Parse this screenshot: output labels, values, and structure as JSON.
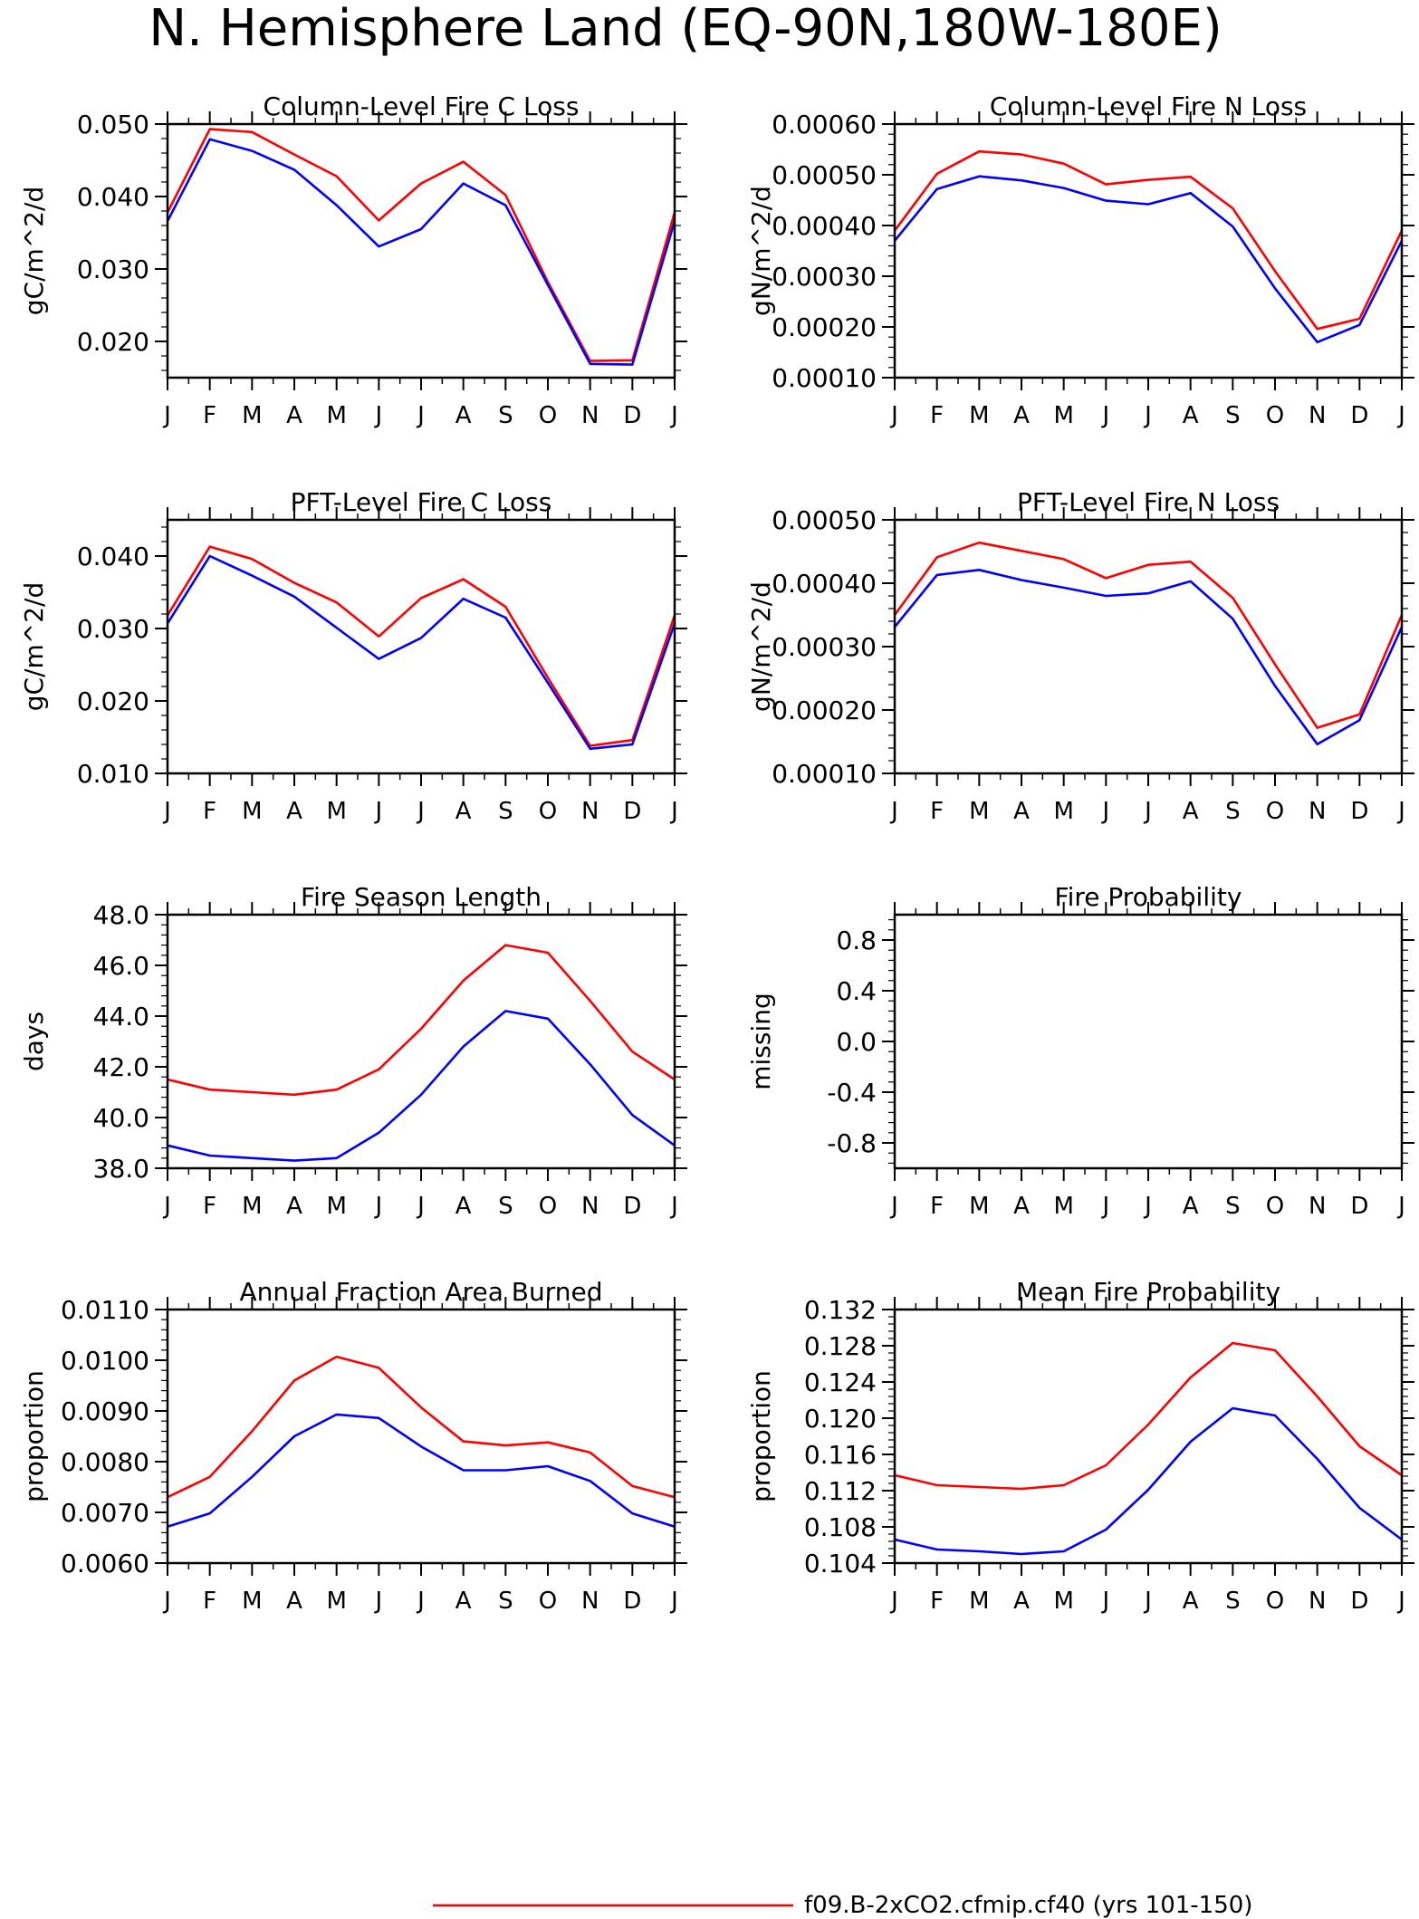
{
  "figure": {
    "title": "N. Hemisphere Land (EQ-90N,180W-180E)",
    "legend": {
      "label": "f09.B-2xCO2.cfmip.cf40 (yrs 101-150)",
      "color": "#ff0000"
    }
  },
  "colors": {
    "red": "#ff0000",
    "blue": "#0000ff",
    "axis": "#000000"
  },
  "chart_data": [
    {
      "type": "line",
      "title": "Column-Level Fire C Loss",
      "ylabel": "gC/m^2/d",
      "categories": [
        "J",
        "F",
        "M",
        "A",
        "M",
        "J",
        "J",
        "A",
        "S",
        "O",
        "N",
        "D",
        "J"
      ],
      "ylim": [
        0.015,
        0.05
      ],
      "yticks": [
        "0.020",
        "0.030",
        "0.040",
        "0.050"
      ],
      "series": [
        {
          "color": "#ff0000",
          "values": [
            0.0378,
            0.0493,
            0.0489,
            0.0458,
            0.0428,
            0.0367,
            0.0418,
            0.0448,
            0.0402,
            0.0282,
            0.0173,
            0.0174,
            0.0378
          ]
        },
        {
          "color": "#0000ff",
          "values": [
            0.0366,
            0.0479,
            0.0463,
            0.0437,
            0.0388,
            0.0331,
            0.0355,
            0.0418,
            0.0388,
            0.0278,
            0.0169,
            0.0168,
            0.0366
          ]
        }
      ]
    },
    {
      "type": "line",
      "title": "Column-Level Fire N Loss",
      "ylabel": "gN/m^2/d",
      "categories": [
        "J",
        "F",
        "M",
        "A",
        "M",
        "J",
        "J",
        "A",
        "S",
        "O",
        "N",
        "D",
        "J"
      ],
      "ylim": [
        0.0001,
        0.0006
      ],
      "yticks": [
        "0.00010",
        "0.00020",
        "0.00030",
        "0.00040",
        "0.00050",
        "0.00060"
      ],
      "series": [
        {
          "color": "#ff0000",
          "values": [
            0.00039,
            0.000502,
            0.000546,
            0.00054,
            0.000522,
            0.000481,
            0.00049,
            0.000496,
            0.000434,
            0.00031,
            0.000196,
            0.000216,
            0.00039
          ]
        },
        {
          "color": "#0000ff",
          "values": [
            0.00037,
            0.000472,
            0.000497,
            0.000489,
            0.000474,
            0.000449,
            0.000442,
            0.000464,
            0.000398,
            0.000276,
            0.00017,
            0.000204,
            0.00037
          ]
        }
      ]
    },
    {
      "type": "line",
      "title": "PFT-Level Fire C Loss",
      "ylabel": "gC/m^2/d",
      "categories": [
        "J",
        "F",
        "M",
        "A",
        "M",
        "J",
        "J",
        "A",
        "S",
        "O",
        "N",
        "D",
        "J"
      ],
      "ylim": [
        0.01,
        0.045
      ],
      "yticks": [
        "0.010",
        "0.020",
        "0.030",
        "0.040"
      ],
      "series": [
        {
          "color": "#ff0000",
          "values": [
            0.0318,
            0.0413,
            0.0396,
            0.0363,
            0.0336,
            0.0289,
            0.0342,
            0.0368,
            0.033,
            0.0232,
            0.0138,
            0.0146,
            0.0318
          ]
        },
        {
          "color": "#0000ff",
          "values": [
            0.0307,
            0.04,
            0.0373,
            0.0344,
            0.0301,
            0.0258,
            0.0287,
            0.0341,
            0.0315,
            0.0225,
            0.0134,
            0.014,
            0.0307
          ]
        }
      ]
    },
    {
      "type": "line",
      "title": "PFT-Level Fire N Loss",
      "ylabel": "gN/m^2/d",
      "categories": [
        "J",
        "F",
        "M",
        "A",
        "M",
        "J",
        "J",
        "A",
        "S",
        "O",
        "N",
        "D",
        "J"
      ],
      "ylim": [
        0.0001,
        0.0005
      ],
      "yticks": [
        "0.00010",
        "0.00020",
        "0.00030",
        "0.00040",
        "0.00050"
      ],
      "series": [
        {
          "color": "#ff0000",
          "values": [
            0.00035,
            0.000441,
            0.000464,
            0.000451,
            0.000438,
            0.000408,
            0.000429,
            0.000434,
            0.000377,
            0.000272,
            0.000172,
            0.000193,
            0.00035
          ]
        },
        {
          "color": "#0000ff",
          "values": [
            0.000331,
            0.000413,
            0.000421,
            0.000405,
            0.000393,
            0.00038,
            0.000384,
            0.000403,
            0.000344,
            0.000238,
            0.000146,
            0.000184,
            0.000331
          ]
        }
      ]
    },
    {
      "type": "line",
      "title": "Fire Season Length",
      "ylabel": "days",
      "categories": [
        "J",
        "F",
        "M",
        "A",
        "M",
        "J",
        "J",
        "A",
        "S",
        "O",
        "N",
        "D",
        "J"
      ],
      "ylim": [
        38.0,
        48.0
      ],
      "yticks": [
        "38.0",
        "40.0",
        "42.0",
        "44.0",
        "46.0",
        "48.0"
      ],
      "series": [
        {
          "color": "#ff0000",
          "values": [
            41.5,
            41.1,
            41.0,
            40.9,
            41.1,
            41.9,
            43.5,
            45.4,
            46.8,
            46.5,
            44.6,
            42.6,
            41.5
          ]
        },
        {
          "color": "#0000ff",
          "values": [
            38.9,
            38.5,
            38.4,
            38.3,
            38.4,
            39.4,
            40.9,
            42.8,
            44.2,
            43.9,
            42.1,
            40.1,
            38.9
          ]
        }
      ]
    },
    {
      "type": "line",
      "title": "Fire Probability",
      "ylabel": "missing",
      "categories": [
        "J",
        "F",
        "M",
        "A",
        "M",
        "J",
        "J",
        "A",
        "S",
        "O",
        "N",
        "D",
        "J"
      ],
      "ylim": [
        -1.0,
        1.0
      ],
      "yticks": [
        "-0.8",
        "-0.4",
        "0.0",
        "0.4",
        "0.8"
      ],
      "series": []
    },
    {
      "type": "line",
      "title": "Annual Fraction Area Burned",
      "ylabel": "proportion",
      "categories": [
        "J",
        "F",
        "M",
        "A",
        "M",
        "J",
        "J",
        "A",
        "S",
        "O",
        "N",
        "D",
        "J"
      ],
      "ylim": [
        0.006,
        0.011
      ],
      "yticks": [
        "0.0060",
        "0.0070",
        "0.0080",
        "0.0090",
        "0.0100",
        "0.0110"
      ],
      "series": [
        {
          "color": "#ff0000",
          "values": [
            0.0073,
            0.0077,
            0.0086,
            0.0096,
            0.01007,
            0.00985,
            0.00907,
            0.0084,
            0.00832,
            0.00838,
            0.00818,
            0.00752,
            0.0073
          ]
        },
        {
          "color": "#0000ff",
          "values": [
            0.00672,
            0.00698,
            0.0077,
            0.0085,
            0.00893,
            0.00886,
            0.0083,
            0.00783,
            0.00783,
            0.00791,
            0.00762,
            0.00698,
            0.00672
          ]
        }
      ]
    },
    {
      "type": "line",
      "title": "Mean Fire Probability",
      "ylabel": "proportion",
      "categories": [
        "J",
        "F",
        "M",
        "A",
        "M",
        "J",
        "J",
        "A",
        "S",
        "O",
        "N",
        "D",
        "J"
      ],
      "ylim": [
        0.104,
        0.132
      ],
      "yticks": [
        "0.104",
        "0.108",
        "0.112",
        "0.116",
        "0.120",
        "0.124",
        "0.128",
        "0.132"
      ],
      "series": [
        {
          "color": "#ff0000",
          "values": [
            0.1137,
            0.1126,
            0.1124,
            0.1122,
            0.1126,
            0.1148,
            0.1193,
            0.1245,
            0.1283,
            0.1275,
            0.1224,
            0.1169,
            0.1137
          ]
        },
        {
          "color": "#0000ff",
          "values": [
            0.1066,
            0.1055,
            0.1053,
            0.105,
            0.1053,
            0.1077,
            0.1121,
            0.1174,
            0.1211,
            0.1203,
            0.1155,
            0.1101,
            0.1066
          ]
        }
      ]
    }
  ]
}
